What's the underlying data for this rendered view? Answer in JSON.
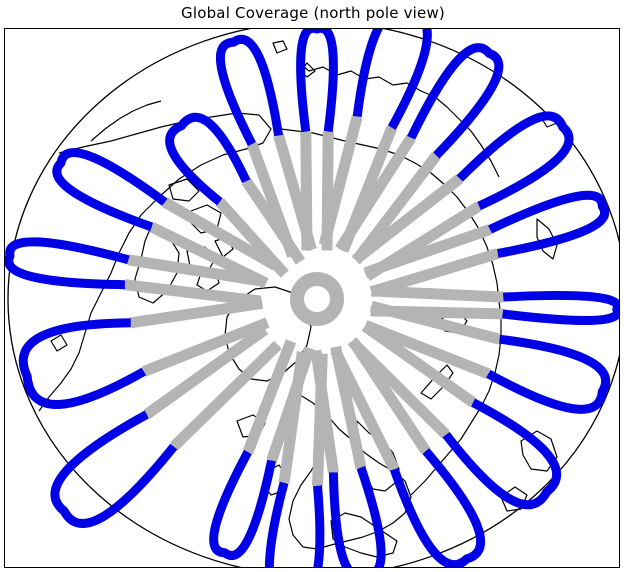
{
  "title": "Global Coverage (north pole view)",
  "colors": {
    "coverage_track": "#0000e6",
    "overlap_track": "#b4b4b4",
    "coastline": "#000000",
    "background": "#ffffff"
  },
  "projection": "north polar stereographic"
}
